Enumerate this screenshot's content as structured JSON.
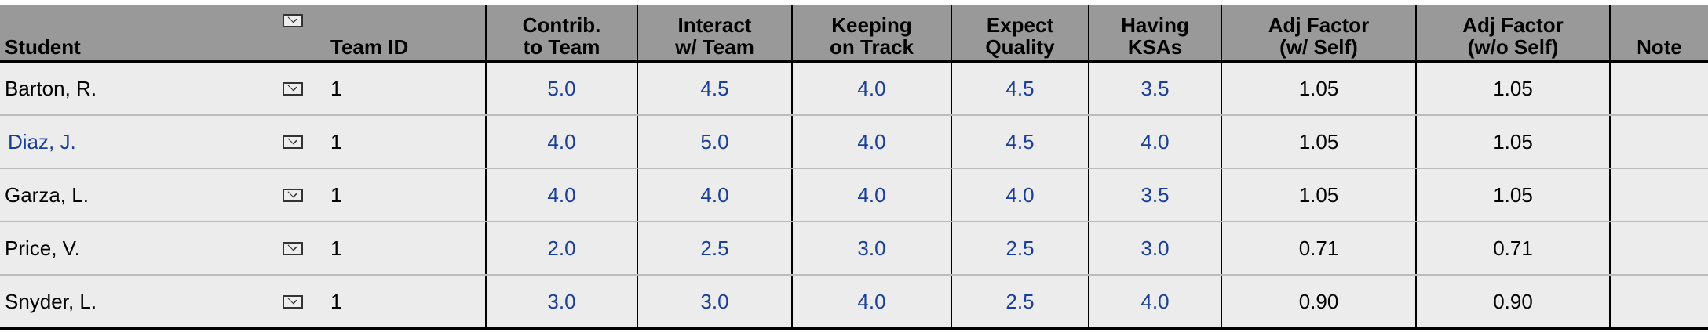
{
  "headers": {
    "student": "Student",
    "email_icon": "envelope-icon",
    "team_id": "Team ID",
    "contrib": [
      "Contrib.",
      "to Team"
    ],
    "interact": [
      "Interact",
      "w/ Team"
    ],
    "keeping": [
      "Keeping",
      "on Track"
    ],
    "expect": [
      "Expect",
      "Quality"
    ],
    "having": [
      "Having",
      "KSAs"
    ],
    "adj_self": [
      "Adj Factor",
      "(w/ Self)"
    ],
    "adj_noself": [
      "Adj Factor",
      "(w/o Self)"
    ],
    "note": "Note"
  },
  "colors": {
    "header_bg": "#999999",
    "row_bg": "#ececec",
    "score": "#1a3f9a"
  },
  "rows": [
    {
      "student": "Barton, R.",
      "team": "1",
      "contrib": "5.0",
      "interact": "4.5",
      "keeping": "4.0",
      "expect": "4.5",
      "having": "3.5",
      "adj_self": "1.05",
      "adj_noself": "1.05",
      "note": ""
    },
    {
      "student": "Diaz, J.",
      "team": "1",
      "contrib": "4.0",
      "interact": "5.0",
      "keeping": "4.0",
      "expect": "4.5",
      "having": "4.0",
      "adj_self": "1.05",
      "adj_noself": "1.05",
      "note": ""
    },
    {
      "student": "Garza, L.",
      "team": "1",
      "contrib": "4.0",
      "interact": "4.0",
      "keeping": "4.0",
      "expect": "4.0",
      "having": "3.5",
      "adj_self": "1.05",
      "adj_noself": "1.05",
      "note": ""
    },
    {
      "student": "Price, V.",
      "team": "1",
      "contrib": "2.0",
      "interact": "2.5",
      "keeping": "3.0",
      "expect": "2.5",
      "having": "3.0",
      "adj_self": "0.71",
      "adj_noself": "0.71",
      "note": ""
    },
    {
      "student": "Snyder, L.",
      "team": "1",
      "contrib": "3.0",
      "interact": "3.0",
      "keeping": "4.0",
      "expect": "2.5",
      "having": "4.0",
      "adj_self": "0.90",
      "adj_noself": "0.90",
      "note": ""
    }
  ]
}
